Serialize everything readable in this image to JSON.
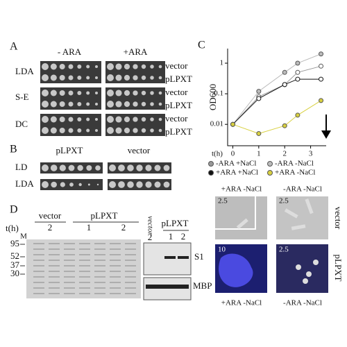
{
  "panel_a": {
    "label": "A",
    "columns": [
      "- ARA",
      "+ARA"
    ],
    "rows": [
      {
        "strain": "LDA",
        "plasmids": [
          "vector",
          "pLPXT"
        ]
      },
      {
        "strain": "S-E",
        "plasmids": [
          "vector",
          "pLPXT"
        ]
      },
      {
        "strain": "DC",
        "plasmids": [
          "vector",
          "pLPXT"
        ]
      }
    ]
  },
  "panel_b": {
    "label": "B",
    "columns": [
      "pLPXT",
      "vector"
    ],
    "rows": [
      "LD",
      "LDA"
    ]
  },
  "panel_c": {
    "label": "C",
    "column_labels": [
      "+ARA -NaCl",
      "-ARA -NaCl"
    ],
    "row_labels": [
      "vector",
      "pLPXT"
    ],
    "bottom_labels": [
      "+ARA -NaCl",
      "-ARA -NaCl"
    ],
    "scale_bars": [
      "2.5",
      "2.5",
      "10",
      "2.5"
    ]
  },
  "chart_data": {
    "type": "line",
    "y_label": "OD600",
    "x_label": "t(h)",
    "log_y": true,
    "x": [
      0,
      1,
      2,
      2.5,
      3.4
    ],
    "xlim": [
      -0.2,
      3.6
    ],
    "xticks": [
      0,
      1,
      2,
      3
    ],
    "ylim": [
      0.002,
      3
    ],
    "yticks": [
      0.01,
      0.1,
      1
    ],
    "series": [
      {
        "name": "-ARA +NaCl",
        "color": "#999999",
        "values": [
          0.01,
          0.08,
          0.2,
          0.5,
          0.8
        ]
      },
      {
        "name": "-ARA -NaCl",
        "color": "#bbbbbb",
        "values": [
          0.01,
          0.12,
          0.5,
          1,
          2
        ]
      },
      {
        "name": "+ARA +NaCl",
        "color": "#111111",
        "values": [
          0.01,
          0.07,
          0.2,
          0.3,
          0.3
        ]
      },
      {
        "name": "+ARA -NaCl",
        "color": "#d8d040",
        "values": [
          0.01,
          0.005,
          0.009,
          0.02,
          0.06
        ]
      }
    ]
  },
  "panel_d": {
    "label": "D",
    "time_label": "t(h)",
    "marker_lane": "M",
    "groups": [
      "vector",
      "pLPXT"
    ],
    "lane_times": [
      "2",
      "1",
      "2"
    ],
    "size_markers": [
      "95",
      "52",
      "37",
      "30"
    ],
    "blot_groups": [
      "vector",
      "pLPXT"
    ],
    "blot_times": [
      "2",
      "1",
      "2"
    ],
    "blot_labels": [
      "S1",
      "MBP"
    ]
  }
}
